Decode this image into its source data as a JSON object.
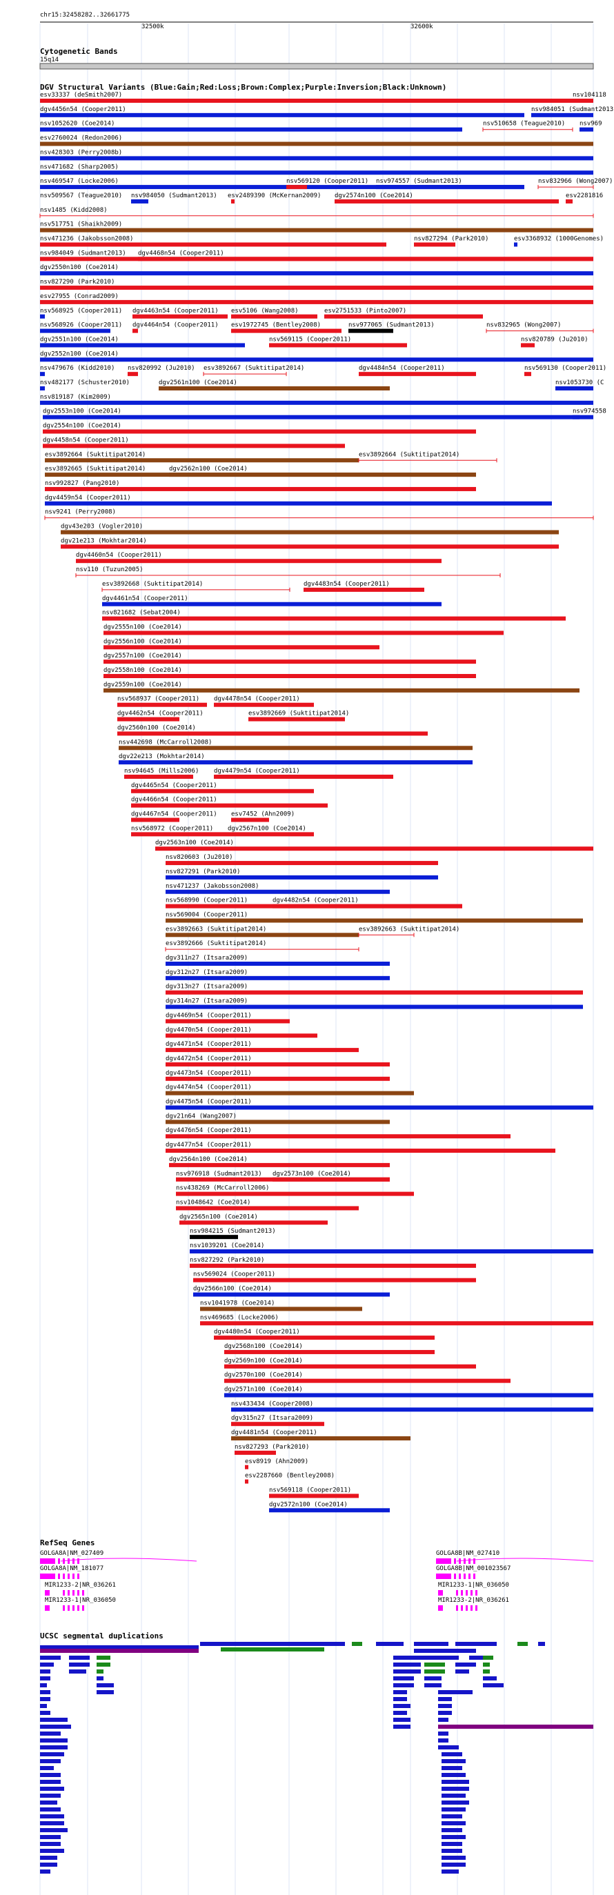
{
  "browser": {
    "region": "chr15:32458282..32661775",
    "ticks": [
      "32500k",
      "32600k"
    ]
  },
  "cytoband": {
    "title": "Cytogenetic Bands",
    "band": "15q14"
  },
  "dgv": {
    "title": "DGV Structural Variants (Blue:Gain;Red:Loss;Brown:Complex;Purple:Inversion;Black:Unknown)",
    "colors": {
      "gain": "#0a1ed6",
      "loss": "#e8141e",
      "complex": "#8b4513",
      "inversion": "#800080",
      "unknown": "#000000"
    },
    "labels": [
      "esv33337 (deSmith2007)",
      "nsv104118",
      "dgv4456n54 (Cooper2011)",
      "nsv984051 (Sudmant2013)",
      "nsv1052620 (Coe2014)",
      "nsv510658 (Teague2010)",
      "nsv969",
      "esv2760024 (Redon2006)",
      "nsv428303 (Perry2008b)",
      "nsv471682 (Sharp2005)",
      "nsv469547 (Locke2006)",
      "nsv569120 (Cooper2011)",
      "nsv974557 (Sudmant2013)",
      "nsv832966 (Wong2007)",
      "nsv509567 (Teague2010)",
      "nsv984050 (Sudmant2013)",
      "esv2489390 (McKernan2009)",
      "dgv2574n100 (Coe2014)",
      "esv2281816",
      "nsv1485 (Kidd2008)",
      "nsv517751 (Shaikh2009)",
      "nsv471236 (Jakobsson2008)",
      "nsv827294 (Park2010)",
      "esv3368932 (1000Genomes)",
      "nsv984049 (Sudmant2013)",
      "dgv4468n54 (Cooper2011)",
      "dgv2550n100 (Coe2014)",
      "nsv827290 (Park2010)",
      "esv27955 (Conrad2009)",
      "nsv568925 (Cooper2011)",
      "dgv4463n54 (Cooper2011)",
      "esv5106 (Wang2008)",
      "esv2751533 (Pinto2007)",
      "nsv568926 (Cooper2011)",
      "dgv4464n54 (Cooper2011)",
      "esv1972745 (Bentley2008)",
      "nsv977065 (Sudmant2013)",
      "nsv832965 (Wong2007)",
      "dgv2551n100 (Coe2014)",
      "nsv569115 (Cooper2011)",
      "nsv820789 (Ju2010)",
      "dgv2552n100 (Coe2014)",
      "nsv479676 (Kidd2010)",
      "nsv820992 (Ju2010)",
      "esv3892667 (Suktitipat2014)",
      "dgv4484n54 (Cooper2011)",
      "nsv569130 (Cooper2011)",
      "nsv482177 (Schuster2010)",
      "dgv2561n100 (Coe2014)",
      "nsv1053730 (C",
      "nsv819187 (Kim2009)",
      "dgv2553n100 (Coe2014)",
      "nsv974558",
      "dgv2554n100 (Coe2014)",
      "dgv4458n54 (Cooper2011)",
      "esv3892664 (Suktitipat2014)",
      "esv3892665 (Suktitipat2014)",
      "dgv2562n100 (Coe2014)",
      "nsv992827 (Pang2010)",
      "dgv4459n54 (Cooper2011)",
      "nsv9241 (Perry2008)",
      "dgv43e203 (Vogler2010)",
      "dgv21e213 (Mokhtar2014)",
      "dgv4460n54 (Cooper2011)",
      "nsv110 (Tuzun2005)",
      "esv3892668 (Suktitipat2014)",
      "dgv4483n54 (Cooper2011)",
      "dgv4461n54 (Cooper2011)",
      "nsv821682 (Sebat2004)",
      "dgv2555n100 (Coe2014)",
      "dgv2556n100 (Coe2014)",
      "dgv2557n100 (Coe2014)",
      "dgv2558n100 (Coe2014)",
      "dgv2559n100 (Coe2014)",
      "nsv568937 (Cooper2011)",
      "dgv4478n54 (Cooper2011)",
      "dgv4462n54 (Cooper2011)",
      "esv3892669 (Suktitipat2014)",
      "dgv2560n100 (Coe2014)",
      "nsv442698 (McCarroll2008)",
      "dgv22e213 (Mokhtar2014)",
      "nsv94645 (Mills2006)",
      "dgv4479n54 (Cooper2011)",
      "dgv4465n54 (Cooper2011)",
      "dgv4466n54 (Cooper2011)",
      "dgv4467n54 (Cooper2011)",
      "esv7452 (Ahn2009)",
      "nsv568972 (Cooper2011)",
      "dgv2567n100 (Coe2014)",
      "dgv2563n100 (Coe2014)",
      "nsv820603 (Ju2010)",
      "nsv827291 (Park2010)",
      "nsv471237 (Jakobsson2008)",
      "nsv568990 (Cooper2011)",
      "dgv4482n54 (Cooper2011)",
      "nsv569004 (Cooper2011)",
      "esv3892663 (Suktitipat2014)",
      "esv3892666 (Suktitipat2014)",
      "dgv311n27 (Itsara2009)",
      "dgv312n27 (Itsara2009)",
      "dgv313n27 (Itsara2009)",
      "dgv314n27 (Itsara2009)",
      "dgv4469n54 (Cooper2011)",
      "dgv4470n54 (Cooper2011)",
      "dgv4471n54 (Cooper2011)",
      "dgv4472n54 (Cooper2011)",
      "dgv4473n54 (Cooper2011)",
      "dgv4474n54 (Cooper2011)",
      "dgv4475n54 (Cooper2011)",
      "dgv21n64 (Wang2007)",
      "dgv4476n54 (Cooper2011)",
      "dgv4477n54 (Cooper2011)",
      "dgv2564n100 (Coe2014)",
      "nsv976918 (Sudmant2013)",
      "dgv2573n100 (Coe2014)",
      "nsv438269 (McCarroll2006)",
      "nsv1048642 (Coe2014)",
      "dgv2565n100 (Coe2014)",
      "nsv984215 (Sudmant2013)",
      "nsv1039201 (Coe2014)",
      "nsv827292 (Park2010)",
      "nsv569024 (Cooper2011)",
      "dgv2566n100 (Coe2014)",
      "nsv1041978 (Coe2014)",
      "nsv469685 (Locke2006)",
      "dgv4480n54 (Cooper2011)",
      "dgv2568n100 (Coe2014)",
      "dgv2569n100 (Coe2014)",
      "dgv2570n100 (Coe2014)",
      "dgv2571n100 (Coe2014)",
      "nsv433434 (Cooper2008)",
      "dgv315n27 (Itsara2009)",
      "dgv4481n54 (Cooper2011)",
      "nsv827293 (Park2010)",
      "esv8919 (Ahn2009)",
      "esv2287660 (Bentley2008)",
      "nsv569118 (Cooper2011)",
      "dgv2572n100 (Coe2014)"
    ]
  },
  "refseq": {
    "title": "RefSeq Genes",
    "genes": [
      "GOLGA8A|NM_027409",
      "GOLGA8A|NM_181077",
      "MIR1233-2|NR_036261",
      "MIR1233-1|NR_036050",
      "GOLGA8B|NM_027410",
      "GOLGA8B|NM_001023567",
      "MIR1233-1|NR_036050",
      "MIR1233-2|NR_036261"
    ]
  },
  "segdup": {
    "title": "UCSC segmental duplications"
  }
}
